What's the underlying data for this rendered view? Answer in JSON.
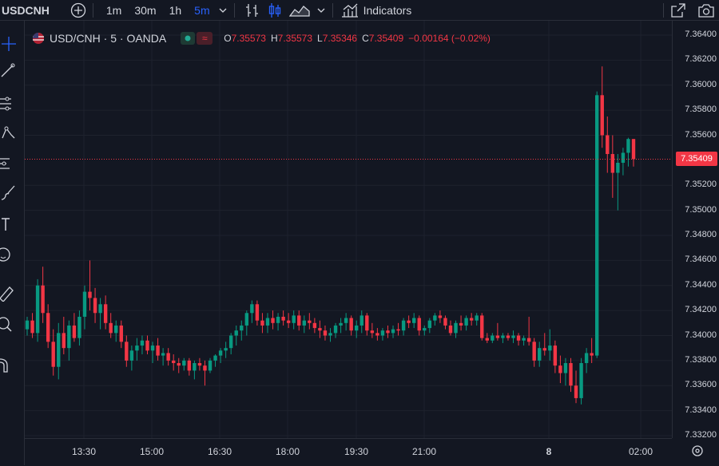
{
  "toolbar": {
    "symbol": "USDCNH",
    "intervals": [
      "1m",
      "30m",
      "1h",
      "5m"
    ],
    "active_interval": "5m",
    "indicators_label": "Indicators"
  },
  "legend": {
    "title": "USD/CNH · 5 · OANDA",
    "o_label": "O",
    "o_value": "7.35573",
    "h_label": "H",
    "h_value": "7.35573",
    "l_label": "L",
    "l_value": "7.35346",
    "c_label": "C",
    "c_value": "7.35409",
    "change": "−0.00164 (−0.02%)"
  },
  "price_axis": {
    "labels": [
      "7.36400",
      "7.36200",
      "7.36000",
      "7.35800",
      "7.35600",
      "7.35200",
      "7.35000",
      "7.34800",
      "7.34600",
      "7.34400",
      "7.34200",
      "7.34000",
      "7.33800",
      "7.33600",
      "7.33400",
      "7.33200"
    ],
    "current_price": "7.35409"
  },
  "time_axis": {
    "labels": [
      "13:30",
      "15:00",
      "16:30",
      "18:00",
      "19:30",
      "21:00",
      "8",
      "02:00"
    ]
  },
  "colors": {
    "up": "#089981",
    "down": "#f23645",
    "background": "#131722",
    "grid": "#1e222d"
  },
  "chart_data": {
    "type": "candlestick",
    "ylim": [
      7.332,
      7.365
    ],
    "x_ticks": [
      "13:30",
      "15:00",
      "16:30",
      "18:00",
      "19:30",
      "21:00",
      "8",
      "02:00"
    ],
    "last_close": 7.35409,
    "series": [
      {
        "o": 7.3405,
        "h": 7.3415,
        "l": 7.34,
        "c": 7.3412
      },
      {
        "o": 7.3412,
        "h": 7.3418,
        "l": 7.3398,
        "c": 7.3402
      },
      {
        "o": 7.3402,
        "h": 7.3445,
        "l": 7.3395,
        "c": 7.344
      },
      {
        "o": 7.344,
        "h": 7.3455,
        "l": 7.341,
        "c": 7.3418
      },
      {
        "o": 7.3418,
        "h": 7.3425,
        "l": 7.339,
        "c": 7.3395
      },
      {
        "o": 7.3395,
        "h": 7.3405,
        "l": 7.3368,
        "c": 7.3375
      },
      {
        "o": 7.3375,
        "h": 7.341,
        "l": 7.3365,
        "c": 7.3402
      },
      {
        "o": 7.3402,
        "h": 7.3415,
        "l": 7.3385,
        "c": 7.339
      },
      {
        "o": 7.339,
        "h": 7.3412,
        "l": 7.338,
        "c": 7.3408
      },
      {
        "o": 7.3408,
        "h": 7.3418,
        "l": 7.3395,
        "c": 7.3398
      },
      {
        "o": 7.3398,
        "h": 7.342,
        "l": 7.3392,
        "c": 7.3415
      },
      {
        "o": 7.3415,
        "h": 7.344,
        "l": 7.3405,
        "c": 7.3435
      },
      {
        "o": 7.3435,
        "h": 7.346,
        "l": 7.342,
        "c": 7.343
      },
      {
        "o": 7.343,
        "h": 7.3438,
        "l": 7.341,
        "c": 7.3418
      },
      {
        "o": 7.3418,
        "h": 7.343,
        "l": 7.3405,
        "c": 7.3425
      },
      {
        "o": 7.3425,
        "h": 7.3432,
        "l": 7.3405,
        "c": 7.341
      },
      {
        "o": 7.341,
        "h": 7.3418,
        "l": 7.3398,
        "c": 7.3402
      },
      {
        "o": 7.3402,
        "h": 7.3412,
        "l": 7.3395,
        "c": 7.3408
      },
      {
        "o": 7.3408,
        "h": 7.3412,
        "l": 7.339,
        "c": 7.3395
      },
      {
        "o": 7.3395,
        "h": 7.34,
        "l": 7.3375,
        "c": 7.338
      },
      {
        "o": 7.338,
        "h": 7.3392,
        "l": 7.3372,
        "c": 7.3388
      },
      {
        "o": 7.3388,
        "h": 7.3398,
        "l": 7.338,
        "c": 7.3392
      },
      {
        "o": 7.3392,
        "h": 7.34,
        "l": 7.3385,
        "c": 7.3396
      },
      {
        "o": 7.3396,
        "h": 7.34,
        "l": 7.3385,
        "c": 7.3388
      },
      {
        "o": 7.3388,
        "h": 7.3395,
        "l": 7.3378,
        "c": 7.3392
      },
      {
        "o": 7.3392,
        "h": 7.3398,
        "l": 7.338,
        "c": 7.3384
      },
      {
        "o": 7.3384,
        "h": 7.339,
        "l": 7.3376,
        "c": 7.3386
      },
      {
        "o": 7.3386,
        "h": 7.339,
        "l": 7.3376,
        "c": 7.338
      },
      {
        "o": 7.338,
        "h": 7.3385,
        "l": 7.3372,
        "c": 7.3378
      },
      {
        "o": 7.3378,
        "h": 7.3382,
        "l": 7.337,
        "c": 7.3376
      },
      {
        "o": 7.3376,
        "h": 7.3382,
        "l": 7.3372,
        "c": 7.338
      },
      {
        "o": 7.338,
        "h": 7.3382,
        "l": 7.3368,
        "c": 7.3372
      },
      {
        "o": 7.3372,
        "h": 7.338,
        "l": 7.3365,
        "c": 7.3378
      },
      {
        "o": 7.3378,
        "h": 7.3382,
        "l": 7.3372,
        "c": 7.3376
      },
      {
        "o": 7.3376,
        "h": 7.338,
        "l": 7.336,
        "c": 7.3372
      },
      {
        "o": 7.3372,
        "h": 7.3382,
        "l": 7.337,
        "c": 7.338
      },
      {
        "o": 7.338,
        "h": 7.3385,
        "l": 7.3375,
        "c": 7.3384
      },
      {
        "o": 7.3384,
        "h": 7.339,
        "l": 7.3378,
        "c": 7.3388
      },
      {
        "o": 7.3388,
        "h": 7.3395,
        "l": 7.3382,
        "c": 7.339
      },
      {
        "o": 7.339,
        "h": 7.3402,
        "l": 7.3385,
        "c": 7.34
      },
      {
        "o": 7.34,
        "h": 7.3408,
        "l": 7.3392,
        "c": 7.3404
      },
      {
        "o": 7.3404,
        "h": 7.3412,
        "l": 7.3396,
        "c": 7.3408
      },
      {
        "o": 7.3408,
        "h": 7.342,
        "l": 7.34,
        "c": 7.3418
      },
      {
        "o": 7.3418,
        "h": 7.3428,
        "l": 7.341,
        "c": 7.3425
      },
      {
        "o": 7.3425,
        "h": 7.3428,
        "l": 7.3408,
        "c": 7.3412
      },
      {
        "o": 7.3412,
        "h": 7.3418,
        "l": 7.3402,
        "c": 7.3408
      },
      {
        "o": 7.3408,
        "h": 7.3418,
        "l": 7.3402,
        "c": 7.3414
      },
      {
        "o": 7.3414,
        "h": 7.342,
        "l": 7.3405,
        "c": 7.341
      },
      {
        "o": 7.341,
        "h": 7.3418,
        "l": 7.3404,
        "c": 7.3415
      },
      {
        "o": 7.3415,
        "h": 7.342,
        "l": 7.3408,
        "c": 7.3412
      },
      {
        "o": 7.3412,
        "h": 7.3418,
        "l": 7.3406,
        "c": 7.341
      },
      {
        "o": 7.341,
        "h": 7.342,
        "l": 7.3405,
        "c": 7.3416
      },
      {
        "o": 7.3416,
        "h": 7.342,
        "l": 7.3404,
        "c": 7.3408
      },
      {
        "o": 7.3408,
        "h": 7.3416,
        "l": 7.3402,
        "c": 7.3412
      },
      {
        "o": 7.3412,
        "h": 7.3418,
        "l": 7.3405,
        "c": 7.341
      },
      {
        "o": 7.341,
        "h": 7.3414,
        "l": 7.3402,
        "c": 7.3406
      },
      {
        "o": 7.3406,
        "h": 7.3412,
        "l": 7.3398,
        "c": 7.3404
      },
      {
        "o": 7.3404,
        "h": 7.3408,
        "l": 7.3396,
        "c": 7.34
      },
      {
        "o": 7.34,
        "h": 7.3406,
        "l": 7.3395,
        "c": 7.3402
      },
      {
        "o": 7.3402,
        "h": 7.341,
        "l": 7.3398,
        "c": 7.3408
      },
      {
        "o": 7.3408,
        "h": 7.3414,
        "l": 7.3402,
        "c": 7.341
      },
      {
        "o": 7.341,
        "h": 7.3418,
        "l": 7.3404,
        "c": 7.3414
      },
      {
        "o": 7.3414,
        "h": 7.3416,
        "l": 7.34,
        "c": 7.3404
      },
      {
        "o": 7.3404,
        "h": 7.3412,
        "l": 7.3398,
        "c": 7.3408
      },
      {
        "o": 7.3408,
        "h": 7.342,
        "l": 7.3402,
        "c": 7.3416
      },
      {
        "o": 7.3416,
        "h": 7.3418,
        "l": 7.34,
        "c": 7.3404
      },
      {
        "o": 7.3404,
        "h": 7.341,
        "l": 7.3398,
        "c": 7.3402
      },
      {
        "o": 7.3402,
        "h": 7.3406,
        "l": 7.3396,
        "c": 7.34
      },
      {
        "o": 7.34,
        "h": 7.3406,
        "l": 7.3396,
        "c": 7.3404
      },
      {
        "o": 7.3404,
        "h": 7.3408,
        "l": 7.3398,
        "c": 7.3402
      },
      {
        "o": 7.3402,
        "h": 7.3408,
        "l": 7.3398,
        "c": 7.3405
      },
      {
        "o": 7.3405,
        "h": 7.341,
        "l": 7.34,
        "c": 7.3404
      },
      {
        "o": 7.3404,
        "h": 7.3414,
        "l": 7.34,
        "c": 7.3412
      },
      {
        "o": 7.3412,
        "h": 7.3416,
        "l": 7.3406,
        "c": 7.341
      },
      {
        "o": 7.341,
        "h": 7.3418,
        "l": 7.3406,
        "c": 7.3414
      },
      {
        "o": 7.3414,
        "h": 7.3416,
        "l": 7.34,
        "c": 7.3404
      },
      {
        "o": 7.3404,
        "h": 7.3408,
        "l": 7.34,
        "c": 7.3406
      },
      {
        "o": 7.3406,
        "h": 7.3414,
        "l": 7.3402,
        "c": 7.3412
      },
      {
        "o": 7.3412,
        "h": 7.3418,
        "l": 7.3408,
        "c": 7.3416
      },
      {
        "o": 7.3416,
        "h": 7.342,
        "l": 7.341,
        "c": 7.3414
      },
      {
        "o": 7.3414,
        "h": 7.3416,
        "l": 7.3405,
        "c": 7.3408
      },
      {
        "o": 7.3408,
        "h": 7.3412,
        "l": 7.34,
        "c": 7.3402
      },
      {
        "o": 7.3402,
        "h": 7.3412,
        "l": 7.3398,
        "c": 7.341
      },
      {
        "o": 7.341,
        "h": 7.3416,
        "l": 7.3404,
        "c": 7.3408
      },
      {
        "o": 7.3408,
        "h": 7.3416,
        "l": 7.3404,
        "c": 7.3414
      },
      {
        "o": 7.3414,
        "h": 7.3418,
        "l": 7.3408,
        "c": 7.3412
      },
      {
        "o": 7.3412,
        "h": 7.3418,
        "l": 7.3408,
        "c": 7.3416
      },
      {
        "o": 7.3416,
        "h": 7.3418,
        "l": 7.3396,
        "c": 7.3398
      },
      {
        "o": 7.3398,
        "h": 7.3402,
        "l": 7.3394,
        "c": 7.3396
      },
      {
        "o": 7.3396,
        "h": 7.3402,
        "l": 7.3394,
        "c": 7.34
      },
      {
        "o": 7.34,
        "h": 7.341,
        "l": 7.3396,
        "c": 7.3398
      },
      {
        "o": 7.3398,
        "h": 7.3402,
        "l": 7.3394,
        "c": 7.34
      },
      {
        "o": 7.34,
        "h": 7.3402,
        "l": 7.3396,
        "c": 7.3398
      },
      {
        "o": 7.3398,
        "h": 7.3404,
        "l": 7.3394,
        "c": 7.34
      },
      {
        "o": 7.34,
        "h": 7.3402,
        "l": 7.3392,
        "c": 7.3396
      },
      {
        "o": 7.3396,
        "h": 7.34,
        "l": 7.3392,
        "c": 7.3398
      },
      {
        "o": 7.3398,
        "h": 7.3415,
        "l": 7.3392,
        "c": 7.3395
      },
      {
        "o": 7.3395,
        "h": 7.3398,
        "l": 7.3375,
        "c": 7.338
      },
      {
        "o": 7.338,
        "h": 7.3395,
        "l": 7.3375,
        "c": 7.339
      },
      {
        "o": 7.339,
        "h": 7.3402,
        "l": 7.3384,
        "c": 7.3388
      },
      {
        "o": 7.3388,
        "h": 7.3405,
        "l": 7.338,
        "c": 7.3392
      },
      {
        "o": 7.3392,
        "h": 7.3396,
        "l": 7.337,
        "c": 7.3376
      },
      {
        "o": 7.3376,
        "h": 7.3384,
        "l": 7.3362,
        "c": 7.337
      },
      {
        "o": 7.337,
        "h": 7.3382,
        "l": 7.336,
        "c": 7.3378
      },
      {
        "o": 7.3378,
        "h": 7.3382,
        "l": 7.3355,
        "c": 7.336
      },
      {
        "o": 7.336,
        "h": 7.3372,
        "l": 7.3346,
        "c": 7.335
      },
      {
        "o": 7.335,
        "h": 7.3382,
        "l": 7.3345,
        "c": 7.3378
      },
      {
        "o": 7.3378,
        "h": 7.339,
        "l": 7.337,
        "c": 7.3386
      },
      {
        "o": 7.3386,
        "h": 7.3398,
        "l": 7.3378,
        "c": 7.3384
      },
      {
        "o": 7.3384,
        "h": 7.3595,
        "l": 7.3382,
        "c": 7.3592
      },
      {
        "o": 7.3592,
        "h": 7.3615,
        "l": 7.355,
        "c": 7.356
      },
      {
        "o": 7.356,
        "h": 7.3575,
        "l": 7.353,
        "c": 7.3545
      },
      {
        "o": 7.3545,
        "h": 7.356,
        "l": 7.351,
        "c": 7.353
      },
      {
        "o": 7.353,
        "h": 7.3545,
        "l": 7.35,
        "c": 7.3538
      },
      {
        "o": 7.3538,
        "h": 7.355,
        "l": 7.3528,
        "c": 7.3546
      },
      {
        "o": 7.3546,
        "h": 7.3558,
        "l": 7.3535,
        "c": 7.3557
      },
      {
        "o": 7.3557,
        "h": 7.3557,
        "l": 7.3535,
        "c": 7.3541
      }
    ]
  }
}
